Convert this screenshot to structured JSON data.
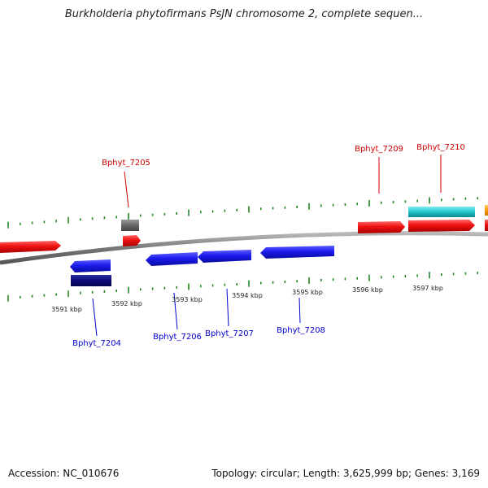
{
  "title": "Burkholderia phytofirmans PsJN chromosome 2, complete sequen...",
  "footer": {
    "accession": "Accession: NC_010676",
    "summary": "Topology: circular; Length: 3,625,999 bp; Genes: 3,169"
  },
  "colors": {
    "forward_gene": "#ee1111",
    "reverse_gene": "#1c1cee",
    "reverse_dark": "#0a0a7a",
    "cds_cyan": "#22c4cc",
    "orange_feature": "#ff9900",
    "gray_feature": "#666666",
    "backbone": "#8a8a8a",
    "tick": "#228822",
    "label_forward": "#cc0000",
    "label_reverse": "#0000cc"
  },
  "scale_labels": [
    "3591 kbp",
    "3592 kbp",
    "3593 kbp",
    "3594 kbp",
    "3595 kbp",
    "3596 kbp",
    "3597 kbp"
  ],
  "gene_labels": {
    "forward": [
      "Bphyt_7205",
      "Bphyt_7209",
      "Bphyt_7210"
    ],
    "reverse": [
      "Bphyt_7204",
      "Bphyt_7206",
      "Bphyt_7207",
      "Bphyt_7208"
    ]
  }
}
